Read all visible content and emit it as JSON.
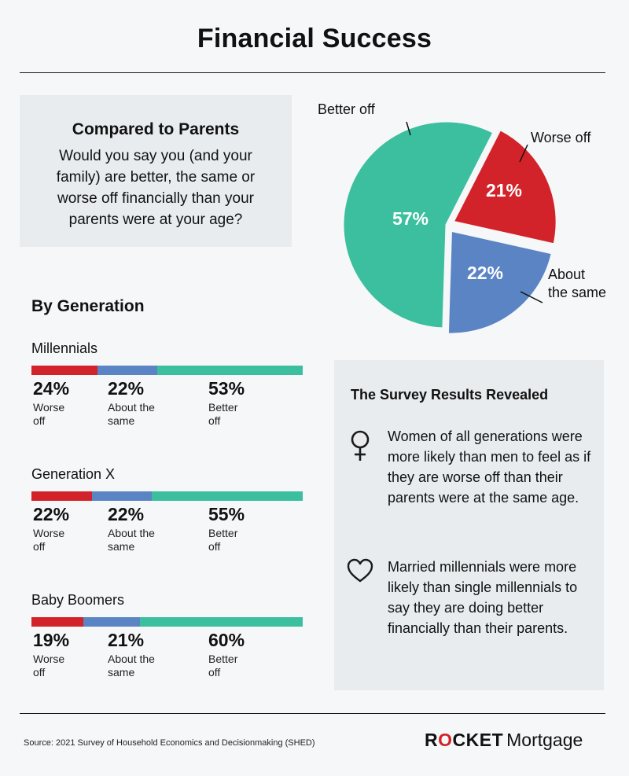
{
  "title": "Financial Success",
  "colors": {
    "worse": "#d2232a",
    "same": "#5b84c4",
    "better": "#3bbf9e",
    "panel": "#e9ecef",
    "rule": "#1a1a1a"
  },
  "compare": {
    "title": "Compared to Parents",
    "question": "Would you say you (and your family) are better, the same or worse off financially than your parents were at your age?"
  },
  "chart_data": [
    {
      "type": "pie",
      "title": "Compared to Parents",
      "slices": [
        {
          "name": "Better off",
          "value": 57,
          "label": "57%",
          "color": "#3bbf9e"
        },
        {
          "name": "Worse off",
          "value": 21,
          "label": "21%",
          "color": "#d2232a"
        },
        {
          "name": "About the same",
          "value": 22,
          "label": "22%",
          "color": "#5b84c4"
        }
      ],
      "callout_lines": [
        [
          "Better off"
        ],
        [
          "Worse off"
        ],
        [
          "About",
          "the same"
        ]
      ]
    },
    {
      "type": "bar",
      "orientation": "horizontal-stacked",
      "title": "By Generation",
      "categories": [
        "Millennials",
        "Generation X",
        "Baby Boomers"
      ],
      "series": [
        {
          "name": "Worse off",
          "values": [
            24,
            22,
            19
          ],
          "color": "#d2232a"
        },
        {
          "name": "About the same",
          "values": [
            22,
            22,
            21
          ],
          "color": "#5b84c4"
        },
        {
          "name": "Better off",
          "values": [
            53,
            55,
            60
          ],
          "color": "#3bbf9e"
        }
      ],
      "stat_labels": [
        [
          "Worse",
          "off"
        ],
        [
          "About the",
          "same"
        ],
        [
          "Better",
          "off"
        ]
      ]
    }
  ],
  "survey": {
    "title": "The Survey Results Revealed",
    "items": [
      {
        "icon": "female-symbol-icon",
        "text": "Women of all generations were more likely than men to feel as if they are worse off than their parents were at the same age."
      },
      {
        "icon": "heart-icon",
        "text": "Married millennials were more likely than single millennials to say they are doing better financially than their parents."
      }
    ]
  },
  "source": "Source: 2021 Survey of Household Economics and Decisionmaking (SHED)",
  "logo": {
    "part1": "R",
    "mark": "O",
    "part2": "CKET",
    "part3": "Mortgage"
  }
}
